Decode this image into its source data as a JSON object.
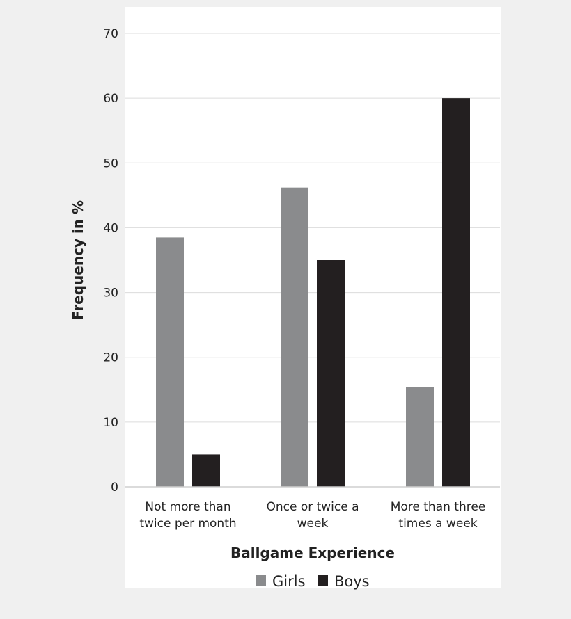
{
  "chart_data": {
    "type": "bar",
    "xlabel": "Ballgame Experience",
    "ylabel": "Frequency in %",
    "ylim": [
      0,
      70
    ],
    "yticks": [
      0,
      10,
      20,
      30,
      40,
      50,
      60,
      70
    ],
    "grid": true,
    "legend_position": "bottom",
    "categories": [
      [
        "Not more than",
        "twice per month"
      ],
      [
        "Once or twice a",
        "week"
      ],
      [
        "More than three",
        "times a week"
      ]
    ],
    "series": [
      {
        "name": "Girls",
        "color": "#8a8b8d",
        "values": [
          38.5,
          46.2,
          15.4
        ]
      },
      {
        "name": "Boys",
        "color": "#231f20",
        "values": [
          5.0,
          35.0,
          60.0
        ]
      }
    ]
  }
}
